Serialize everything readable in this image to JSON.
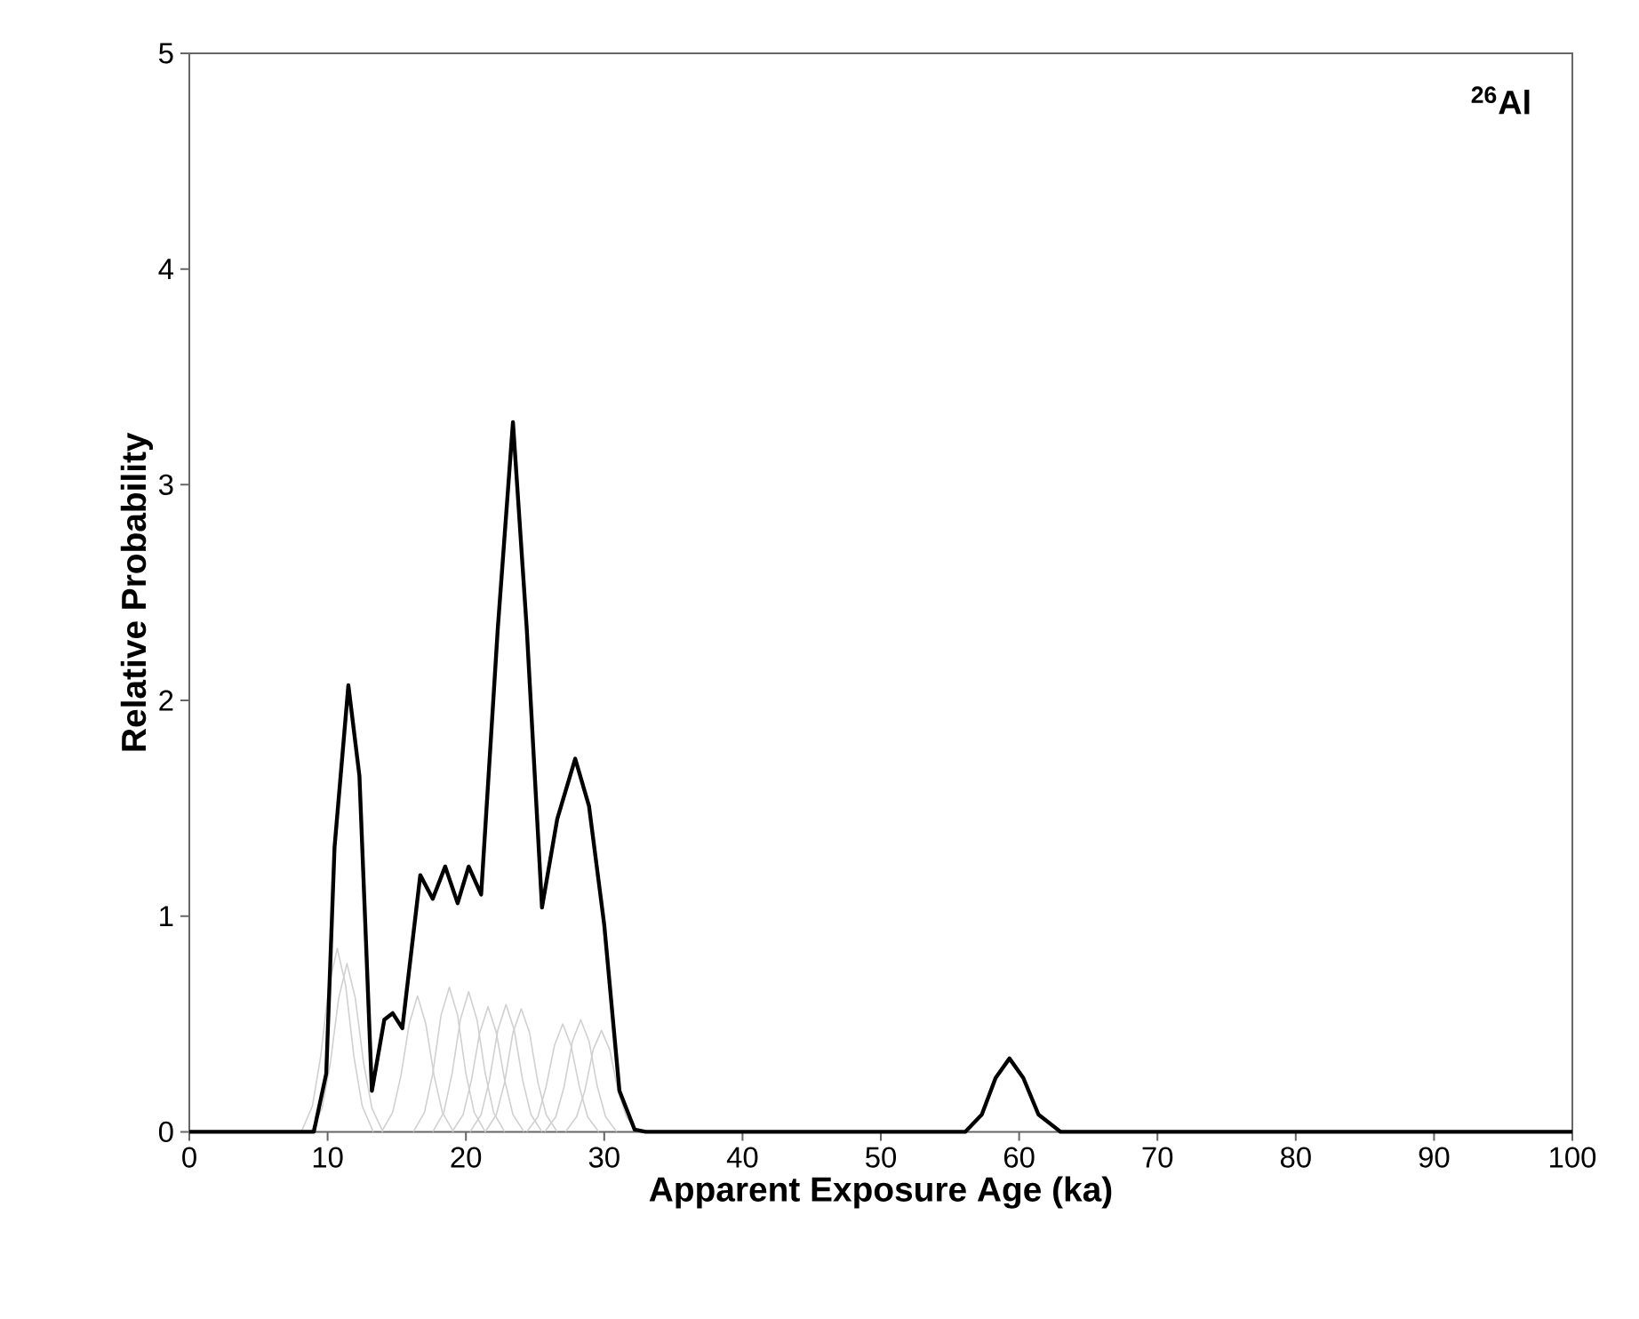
{
  "chart_data": {
    "type": "line",
    "xlabel": "Apparent Exposure Age (ka)",
    "ylabel": "Relative Probability",
    "annotations": [
      "$^{26}$Al"
    ],
    "xlim": [
      0,
      100
    ],
    "ylim": [
      0,
      5
    ],
    "xticks": [
      0,
      10,
      20,
      30,
      40,
      50,
      60,
      70,
      80,
      90,
      100
    ],
    "yticks": [
      0,
      1,
      2,
      3,
      4,
      5
    ],
    "series": [
      {
        "color": "#d0d0d0",
        "x": [
          8.1,
          8.9,
          9.5,
          10.1,
          10.7,
          11.3,
          11.9,
          12.5,
          13.3
        ],
        "values": [
          0,
          0.12,
          0.35,
          0.68,
          0.85,
          0.68,
          0.35,
          0.12,
          0
        ]
      },
      {
        "color": "#d0d0d0",
        "x": [
          8.8,
          9.6,
          10.2,
          10.8,
          11.4,
          12.0,
          12.6,
          13.2,
          14.0
        ],
        "values": [
          0,
          0.11,
          0.32,
          0.62,
          0.78,
          0.62,
          0.32,
          0.11,
          0
        ]
      },
      {
        "color": "#d0d0d0",
        "x": [
          13.9,
          14.7,
          15.3,
          15.9,
          16.5,
          17.1,
          17.7,
          18.3,
          19.1
        ],
        "values": [
          0,
          0.09,
          0.26,
          0.5,
          0.63,
          0.5,
          0.26,
          0.09,
          0
        ]
      },
      {
        "color": "#d0d0d0",
        "x": [
          16.2,
          17.0,
          17.6,
          18.2,
          18.8,
          19.4,
          20.0,
          20.6,
          21.4
        ],
        "values": [
          0,
          0.09,
          0.27,
          0.54,
          0.67,
          0.54,
          0.27,
          0.09,
          0
        ]
      },
      {
        "color": "#d0d0d0",
        "x": [
          17.6,
          18.4,
          19.0,
          19.6,
          20.2,
          20.8,
          21.4,
          22.0,
          22.8
        ],
        "values": [
          0,
          0.09,
          0.27,
          0.52,
          0.65,
          0.52,
          0.27,
          0.09,
          0
        ]
      },
      {
        "color": "#d0d0d0",
        "x": [
          19.0,
          19.8,
          20.4,
          21.0,
          21.6,
          22.2,
          22.8,
          23.4,
          24.2
        ],
        "values": [
          0,
          0.08,
          0.24,
          0.46,
          0.58,
          0.46,
          0.24,
          0.08,
          0
        ]
      },
      {
        "color": "#d0d0d0",
        "x": [
          20.3,
          21.1,
          21.7,
          22.3,
          22.9,
          23.5,
          24.1,
          24.7,
          25.5
        ],
        "values": [
          0,
          0.08,
          0.24,
          0.47,
          0.59,
          0.47,
          0.24,
          0.08,
          0
        ]
      },
      {
        "color": "#d0d0d0",
        "x": [
          21.4,
          22.2,
          22.8,
          23.4,
          24.0,
          24.6,
          25.2,
          25.8,
          26.6
        ],
        "values": [
          0,
          0.08,
          0.23,
          0.46,
          0.57,
          0.46,
          0.23,
          0.08,
          0
        ]
      },
      {
        "color": "#d0d0d0",
        "x": [
          24.4,
          25.2,
          25.8,
          26.4,
          27.0,
          27.6,
          28.2,
          28.8,
          29.6
        ],
        "values": [
          0,
          0.07,
          0.21,
          0.4,
          0.5,
          0.4,
          0.21,
          0.07,
          0
        ]
      },
      {
        "color": "#d0d0d0",
        "x": [
          25.7,
          26.5,
          27.1,
          27.7,
          28.3,
          28.9,
          29.5,
          30.1,
          30.9
        ],
        "values": [
          0,
          0.07,
          0.21,
          0.42,
          0.52,
          0.42,
          0.21,
          0.07,
          0
        ]
      },
      {
        "color": "#d0d0d0",
        "x": [
          27.2,
          28.0,
          28.6,
          29.2,
          29.8,
          30.4,
          31.0,
          31.6,
          32.4
        ],
        "values": [
          0,
          0.07,
          0.19,
          0.38,
          0.47,
          0.38,
          0.19,
          0.07,
          0
        ]
      },
      {
        "color": "#000000",
        "x": [
          0,
          9.0,
          9.9,
          10.5,
          11.5,
          12.3,
          13.2,
          14.1,
          14.7,
          15.4,
          16.7,
          17.6,
          18.5,
          19.4,
          20.2,
          21.1,
          22.3,
          23.4,
          24.4,
          25.5,
          26.6,
          27.9,
          28.9,
          30.0,
          31.1,
          32.2,
          33.0,
          56.1,
          57.3,
          58.3,
          59.3,
          60.3,
          61.4,
          63.0,
          100
        ],
        "values": [
          0,
          0,
          0.27,
          1.32,
          2.07,
          1.65,
          0.19,
          0.52,
          0.55,
          0.48,
          1.19,
          1.08,
          1.23,
          1.06,
          1.23,
          1.1,
          2.33,
          3.29,
          2.33,
          1.04,
          1.45,
          1.73,
          1.51,
          0.96,
          0.19,
          0.01,
          0,
          0,
          0.08,
          0.25,
          0.34,
          0.25,
          0.08,
          0,
          0
        ]
      }
    ]
  }
}
